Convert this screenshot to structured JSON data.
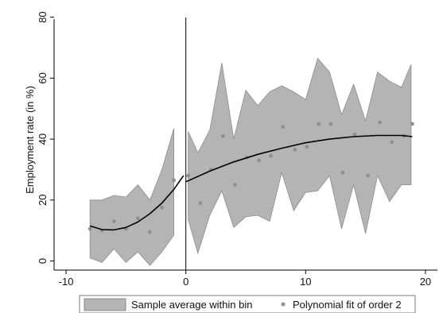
{
  "chart_data": {
    "type": "area",
    "xlabel": "",
    "ylabel": "Employment rate (in %)",
    "xlim": [
      -11,
      21
    ],
    "ylim": [
      -3,
      82
    ],
    "xticks": [
      -10,
      0,
      10,
      20
    ],
    "yticks": [
      0,
      20,
      40,
      60,
      80
    ],
    "cutoff_x": 0,
    "grid": false,
    "legend_position": "bottom",
    "colors": {
      "band_fill": "#b4b4b4",
      "band_stroke": "#8c8c8c",
      "points": "#8f8f8f",
      "fit_line": "#000000",
      "axis": "#000000",
      "legend_border": "#7a7a7a"
    },
    "legend": [
      {
        "label": "Sample average within bin",
        "symbol": "area"
      },
      {
        "label": "Polynomial fit of order 2",
        "symbol": "marker"
      }
    ],
    "band_left": {
      "x": [
        -8,
        -7,
        -6,
        -5,
        -4,
        -3,
        -2,
        -1
      ],
      "upper": [
        20,
        20,
        21.5,
        21,
        25,
        20,
        30,
        43.5
      ],
      "lower": [
        1,
        -0.5,
        4,
        -0.5,
        3,
        -1.5,
        3,
        8.5
      ]
    },
    "band_right": {
      "x": [
        0.2,
        1,
        2,
        3,
        4,
        5,
        6,
        7,
        8,
        9,
        10,
        11,
        12,
        13,
        14,
        15,
        16,
        17,
        18,
        18.8
      ],
      "upper": [
        42.5,
        35.5,
        43,
        65,
        40,
        56,
        51,
        55.5,
        57.5,
        55.5,
        53,
        66.5,
        62,
        48,
        58,
        46,
        62,
        59,
        57,
        64.5
      ],
      "lower": [
        13.5,
        2.5,
        15,
        23,
        11,
        14.5,
        15,
        13,
        29,
        16.5,
        22.5,
        23,
        28,
        10.5,
        25,
        9,
        28,
        19.5,
        25,
        25
      ]
    },
    "points_left": {
      "x": [
        -8,
        -7,
        -6,
        -5,
        -4,
        -3,
        -2,
        -1
      ],
      "y": [
        10.5,
        10,
        13,
        10.5,
        14,
        9.5,
        17.5,
        26.5
      ]
    },
    "points_right": {
      "x": [
        0.2,
        1.2,
        2.1,
        3.1,
        4.1,
        5.1,
        6.1,
        7.1,
        8.1,
        9.1,
        10.1,
        11.1,
        12.1,
        13.1,
        14.1,
        15.2,
        16.2,
        17.2,
        18.2,
        18.9
      ],
      "y": [
        28,
        19,
        30,
        41,
        25,
        34,
        33,
        34.5,
        44,
        36.5,
        37.5,
        45,
        45,
        29,
        41.5,
        28,
        45.5,
        39,
        41,
        45
      ]
    },
    "fit_left": {
      "x": [
        -8,
        -7,
        -6,
        -5,
        -4,
        -3,
        -2,
        -1,
        -0.2
      ],
      "y": [
        11.5,
        10.3,
        10.2,
        11.0,
        12.8,
        15.5,
        19.0,
        23.5,
        28.0
      ]
    },
    "fit_right": {
      "x": [
        0,
        2,
        4,
        6,
        8,
        10,
        12,
        14,
        16,
        18,
        18.9
      ],
      "y": [
        26.0,
        29.5,
        32.5,
        35.0,
        37.0,
        38.8,
        40.0,
        40.8,
        41.2,
        41.2,
        40.8
      ]
    }
  }
}
